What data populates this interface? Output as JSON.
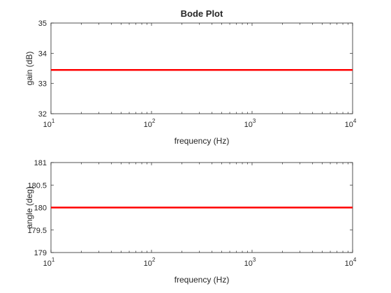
{
  "chart_data": [
    {
      "type": "line",
      "title": "Bode Plot",
      "xlabel": "frequency (Hz)",
      "ylabel": "gain (dB)",
      "xscale": "log",
      "xlim": [
        10,
        10000
      ],
      "ylim": [
        32,
        35
      ],
      "xticks": [
        {
          "base": "10",
          "exp": "1"
        },
        {
          "base": "10",
          "exp": "2"
        },
        {
          "base": "10",
          "exp": "3"
        },
        {
          "base": "10",
          "exp": "4"
        }
      ],
      "xtick_values": [
        10,
        100,
        1000,
        10000
      ],
      "yticks": [
        "32",
        "33",
        "34",
        "35"
      ],
      "ytick_values": [
        32,
        33,
        34,
        35
      ],
      "grid": false,
      "series": [
        {
          "color": "#ff0000",
          "x": [
            10,
            10000
          ],
          "y": [
            33.45,
            33.45
          ]
        }
      ]
    },
    {
      "type": "line",
      "title": "",
      "xlabel": "frequency (Hz)",
      "ylabel": "angle (deg)",
      "xscale": "log",
      "xlim": [
        10,
        10000
      ],
      "ylim": [
        179,
        181
      ],
      "xticks": [
        {
          "base": "10",
          "exp": "1"
        },
        {
          "base": "10",
          "exp": "2"
        },
        {
          "base": "10",
          "exp": "3"
        },
        {
          "base": "10",
          "exp": "4"
        }
      ],
      "xtick_values": [
        10,
        100,
        1000,
        10000
      ],
      "yticks": [
        "179",
        "179.5",
        "180",
        "180.5",
        "181"
      ],
      "ytick_values": [
        179,
        179.5,
        180,
        180.5,
        181
      ],
      "grid": false,
      "series": [
        {
          "color": "#ff0000",
          "x": [
            10,
            10000
          ],
          "y": [
            180,
            180
          ]
        }
      ]
    }
  ]
}
